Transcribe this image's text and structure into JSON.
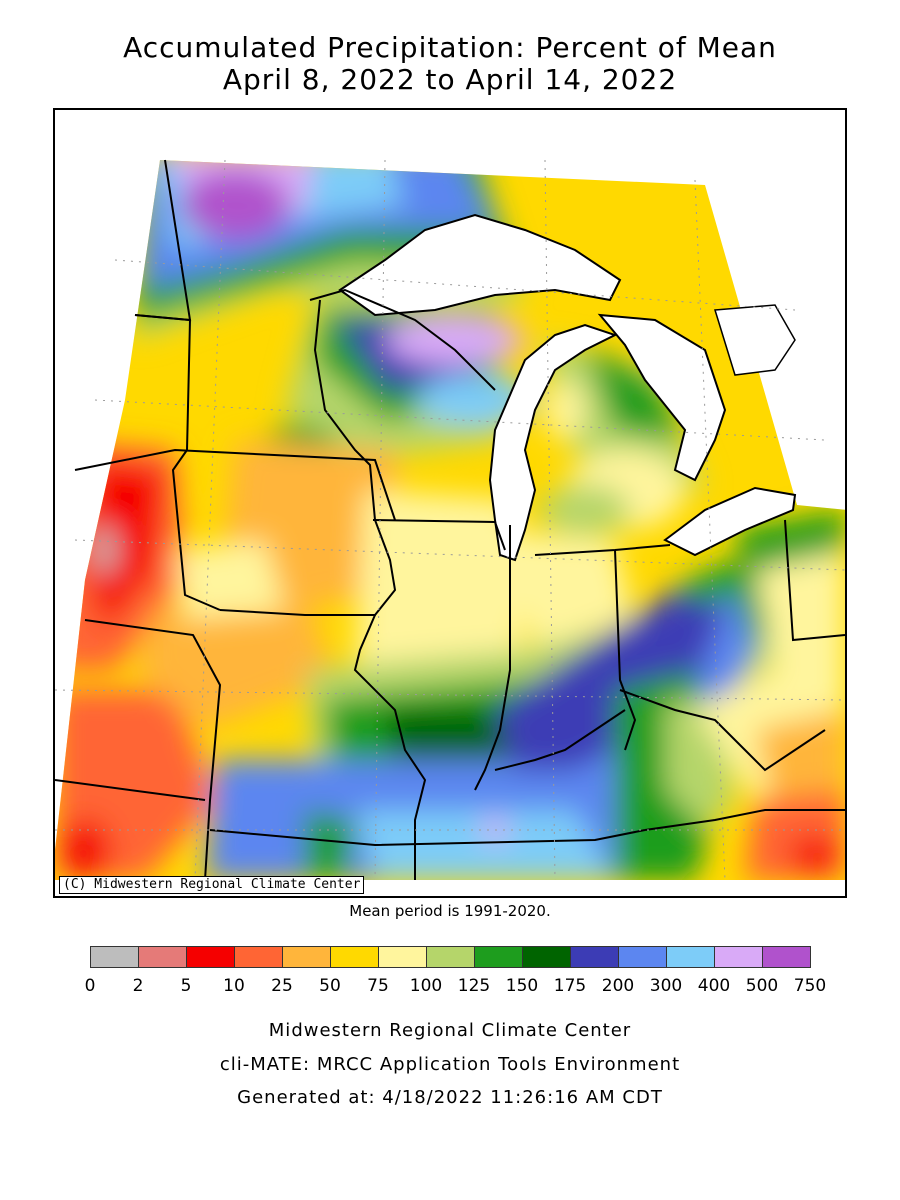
{
  "title": {
    "line1": "Accumulated Precipitation: Percent of Mean",
    "line2": "April 8, 2022 to April 14, 2022"
  },
  "map": {
    "copyright": "(C) Midwestern Regional Climate Center",
    "mean_period": "Mean period is 1991-2020."
  },
  "legend": {
    "colors": [
      "#bdbdbd",
      "#e57a78",
      "#f50000",
      "#ff6534",
      "#ffb53b",
      "#ffd900",
      "#fff59d",
      "#b5d56a",
      "#1e9d1e",
      "#006400",
      "#3c3cb5",
      "#5c86f0",
      "#7dccf8",
      "#d9aaf7",
      "#b052cc"
    ],
    "ticks": [
      "0",
      "2",
      "5",
      "10",
      "25",
      "50",
      "75",
      "100",
      "125",
      "150",
      "175",
      "200",
      "300",
      "400",
      "500",
      "750"
    ]
  },
  "footer": {
    "line1": "Midwestern Regional Climate Center",
    "line2": "cli-MATE: MRCC Application Tools Environment",
    "line3": "Generated at: 4/18/2022 11:26:16 AM CDT"
  }
}
